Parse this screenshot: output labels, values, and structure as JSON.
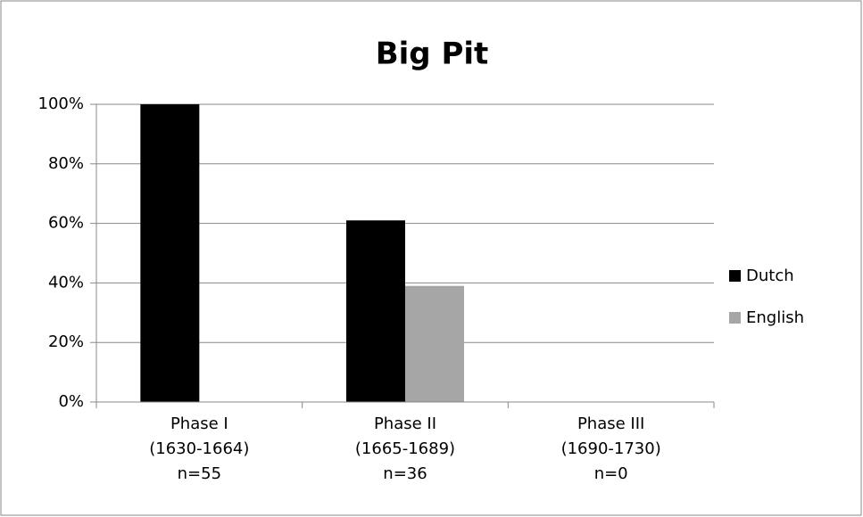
{
  "chart_data": {
    "type": "bar",
    "title": "Big Pit",
    "categories": [
      [
        "Phase I",
        "(1630-1664)",
        "n=55"
      ],
      [
        "Phase II",
        "(1665-1689)",
        "n=36"
      ],
      [
        "Phase III",
        "(1690-1730)",
        "n=0"
      ]
    ],
    "series": [
      {
        "name": "Dutch",
        "color": "#000000",
        "values": [
          100,
          61,
          null
        ]
      },
      {
        "name": "English",
        "color": "#a6a6a6",
        "values": [
          0,
          39,
          null
        ]
      }
    ],
    "ylim": [
      0,
      100
    ],
    "yticks": [
      {
        "value": 0,
        "label": "0%"
      },
      {
        "value": 20,
        "label": "20%"
      },
      {
        "value": 40,
        "label": "40%"
      },
      {
        "value": 60,
        "label": "60%"
      },
      {
        "value": 80,
        "label": "80%"
      },
      {
        "value": 100,
        "label": "100%"
      }
    ],
    "grid": true,
    "legend": "right"
  }
}
